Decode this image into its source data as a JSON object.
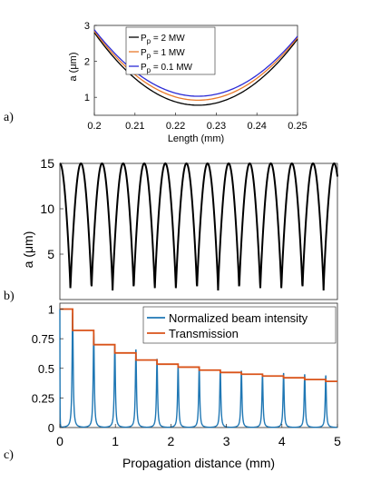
{
  "panel_labels": [
    "a)",
    "b)",
    "c)"
  ],
  "chart_data": [
    {
      "type": "line",
      "panel": "a)",
      "xlabel": "Length (mm)",
      "ylabel": "a (μm)",
      "xlim": [
        0.2,
        0.25
      ],
      "ylim": [
        0.5,
        3
      ],
      "xticks": [
        "0.2",
        "0.21",
        "0.22",
        "0.23",
        "0.24",
        "0.25"
      ],
      "yticks": [
        "1",
        "2",
        "3"
      ],
      "grid": false,
      "legend": "top-left",
      "series": [
        {
          "name": "P_p = 2 MW",
          "label_main": "P",
          "label_sub": "p",
          "label_rest": " = 2 MW",
          "color": "#000000",
          "min_x": 0.2255,
          "min_y": 0.78,
          "y_at_0.2": 2.8,
          "y_at_0.25": 2.62
        },
        {
          "name": "P_p = 1 MW",
          "label_main": "P",
          "label_sub": "p",
          "label_rest": " = 1 MW",
          "color": "#e87a2c",
          "min_x": 0.2255,
          "min_y": 0.92,
          "y_at_0.2": 2.84,
          "y_at_0.25": 2.66
        },
        {
          "name": "P_p = 0.1 MW",
          "label_main": "P",
          "label_sub": "p",
          "label_rest": " = 0.1 MW",
          "color": "#2b2bd6",
          "min_x": 0.2255,
          "min_y": 1.03,
          "y_at_0.2": 2.88,
          "y_at_0.25": 2.7
        }
      ]
    },
    {
      "type": "line",
      "panel": "b)",
      "xlabel": "",
      "ylabel": "a (μm)",
      "xlim": [
        0,
        5
      ],
      "ylim": [
        0,
        15
      ],
      "yticks": [
        "5",
        "10",
        "15"
      ],
      "grid": false,
      "series": [
        {
          "name": "",
          "color": "#000000",
          "period_mm": 0.38,
          "max": 15,
          "min": 1.0,
          "start_phase": "max"
        }
      ]
    },
    {
      "type": "line",
      "panel": "c)",
      "xlabel": "Propagation distance (mm)",
      "ylabel": "",
      "xlim": [
        0,
        5
      ],
      "ylim": [
        0,
        1.05
      ],
      "xticks": [
        "0",
        "1",
        "2",
        "3",
        "4",
        "5"
      ],
      "yticks": [
        "0",
        "0.25",
        "0.5",
        "0.75",
        "1"
      ],
      "grid": false,
      "legend": "top-right",
      "series": [
        {
          "name": "Normalized beam intensity",
          "color": "#1f77b4",
          "peak_x": [
            0.23,
            0.61,
            0.99,
            1.37,
            1.75,
            2.13,
            2.51,
            2.89,
            3.27,
            3.65,
            4.03,
            4.41,
            4.79
          ],
          "peak_y": [
            0.97,
            0.8,
            0.7,
            0.66,
            0.58,
            0.52,
            0.51,
            0.49,
            0.48,
            0.45,
            0.46,
            0.45,
            0.44
          ]
        },
        {
          "name": "Transmission",
          "color": "#d95319",
          "step_x": [
            0,
            0.23,
            0.61,
            0.99,
            1.37,
            1.75,
            2.13,
            2.51,
            2.89,
            3.27,
            3.65,
            4.03,
            4.41,
            4.79,
            5.0
          ],
          "step_y": [
            1.0,
            0.82,
            0.7,
            0.63,
            0.57,
            0.535,
            0.51,
            0.485,
            0.465,
            0.45,
            0.435,
            0.42,
            0.405,
            0.39
          ]
        }
      ]
    }
  ]
}
